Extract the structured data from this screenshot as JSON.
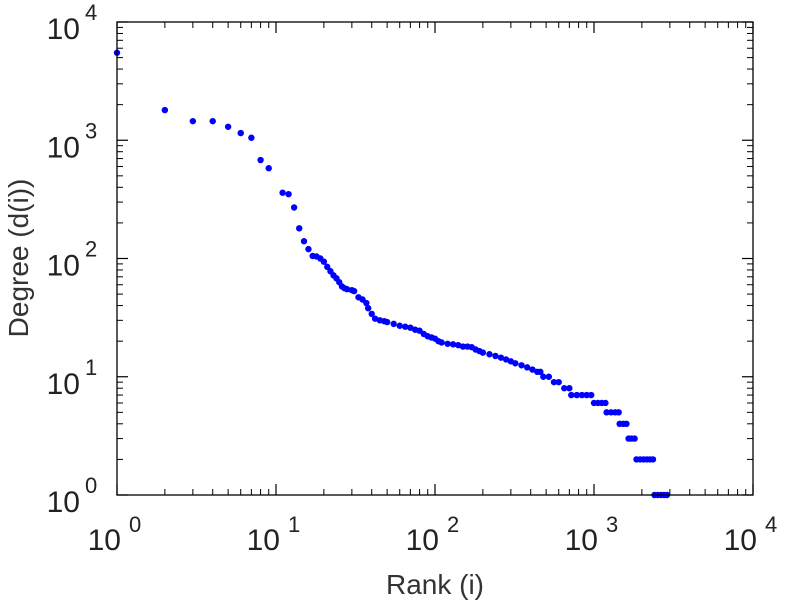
{
  "chart_data": {
    "type": "scatter",
    "title": "",
    "xlabel": "Rank (i)",
    "ylabel": "Degree (d(i))",
    "xscale": "log",
    "yscale": "log",
    "xlim": [
      1,
      10000
    ],
    "ylim": [
      1,
      10000
    ],
    "grid": false,
    "marker_color": "#0000ff",
    "x_ticks": [
      {
        "base": "10",
        "exp": "0"
      },
      {
        "base": "10",
        "exp": "1"
      },
      {
        "base": "10",
        "exp": "2"
      },
      {
        "base": "10",
        "exp": "3"
      },
      {
        "base": "10",
        "exp": "4"
      }
    ],
    "y_ticks": [
      {
        "base": "10",
        "exp": "0"
      },
      {
        "base": "10",
        "exp": "1"
      },
      {
        "base": "10",
        "exp": "2"
      },
      {
        "base": "10",
        "exp": "3"
      },
      {
        "base": "10",
        "exp": "4"
      }
    ],
    "series": [
      {
        "name": "degree",
        "points": [
          [
            1,
            5500
          ],
          [
            2,
            1800
          ],
          [
            3,
            1450
          ],
          [
            4,
            1450
          ],
          [
            5,
            1300
          ],
          [
            6,
            1150
          ],
          [
            7,
            1050
          ],
          [
            8,
            680
          ],
          [
            9,
            580
          ],
          [
            11,
            360
          ],
          [
            12,
            350
          ],
          [
            13,
            270
          ],
          [
            14,
            180
          ],
          [
            15,
            140
          ],
          [
            16,
            120
          ],
          [
            17,
            105
          ],
          [
            18,
            104
          ],
          [
            19,
            100
          ],
          [
            20,
            94
          ],
          [
            21,
            85
          ],
          [
            22,
            78
          ],
          [
            23,
            72
          ],
          [
            24,
            68
          ],
          [
            25,
            63
          ],
          [
            26,
            58
          ],
          [
            27,
            56
          ],
          [
            28,
            55
          ],
          [
            30,
            54
          ],
          [
            31,
            53
          ],
          [
            33,
            47
          ],
          [
            35,
            45
          ],
          [
            37,
            42
          ],
          [
            38,
            38
          ],
          [
            40,
            34
          ],
          [
            42,
            31
          ],
          [
            45,
            30
          ],
          [
            48,
            29.5
          ],
          [
            50,
            29
          ],
          [
            55,
            28
          ],
          [
            60,
            27
          ],
          [
            65,
            26.5
          ],
          [
            70,
            26
          ],
          [
            75,
            25
          ],
          [
            80,
            24.5
          ],
          [
            85,
            23
          ],
          [
            90,
            22
          ],
          [
            95,
            21.5
          ],
          [
            100,
            21
          ],
          [
            105,
            20
          ],
          [
            110,
            19.5
          ],
          [
            120,
            19
          ],
          [
            130,
            18.8
          ],
          [
            140,
            18.5
          ],
          [
            150,
            18
          ],
          [
            160,
            18
          ],
          [
            170,
            17.8
          ],
          [
            180,
            17
          ],
          [
            190,
            16.5
          ],
          [
            200,
            16
          ],
          [
            220,
            15.5
          ],
          [
            240,
            15
          ],
          [
            260,
            14.5
          ],
          [
            280,
            14
          ],
          [
            300,
            13.5
          ],
          [
            320,
            13
          ],
          [
            350,
            12.5
          ],
          [
            380,
            12
          ],
          [
            410,
            11.5
          ],
          [
            440,
            11
          ],
          [
            460,
            11
          ],
          [
            480,
            10
          ],
          [
            520,
            10
          ],
          [
            560,
            9
          ],
          [
            600,
            9
          ],
          [
            650,
            8
          ],
          [
            700,
            8
          ],
          [
            720,
            7
          ],
          [
            780,
            7
          ],
          [
            840,
            7
          ],
          [
            900,
            7
          ],
          [
            960,
            7
          ],
          [
            1000,
            6
          ],
          [
            1060,
            6
          ],
          [
            1120,
            6
          ],
          [
            1180,
            6
          ],
          [
            1200,
            5
          ],
          [
            1280,
            5
          ],
          [
            1360,
            5
          ],
          [
            1430,
            5
          ],
          [
            1450,
            4
          ],
          [
            1530,
            4
          ],
          [
            1600,
            4
          ],
          [
            1650,
            3
          ],
          [
            1720,
            3
          ],
          [
            1800,
            3
          ],
          [
            1850,
            2
          ],
          [
            1950,
            2
          ],
          [
            2050,
            2
          ],
          [
            2150,
            2
          ],
          [
            2250,
            2
          ],
          [
            2350,
            2
          ],
          [
            2400,
            1
          ],
          [
            2520,
            1
          ],
          [
            2640,
            1
          ],
          [
            2760,
            1
          ],
          [
            2880,
            1
          ]
        ]
      }
    ]
  }
}
